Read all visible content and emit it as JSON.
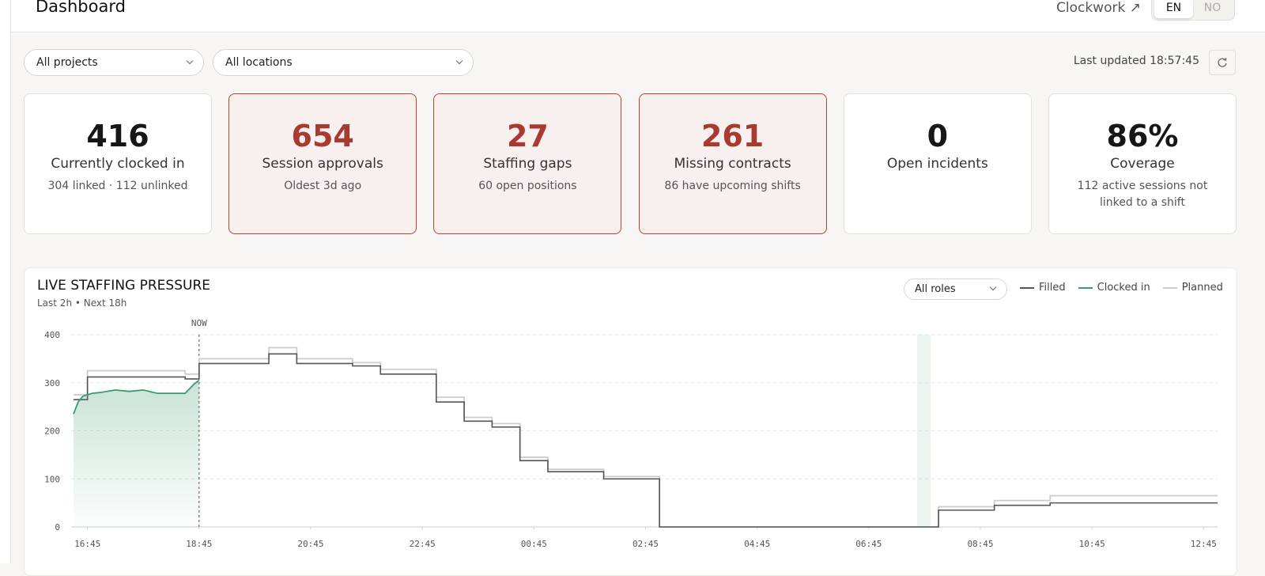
{
  "header": {
    "title": "Dashboard",
    "link": "Clockwork ↗",
    "languages": [
      "EN",
      "NO"
    ]
  },
  "filters": [
    "All projects",
    "All locations"
  ],
  "last_updated": "Last updated 18:57:45",
  "kpis": [
    {
      "value": "416",
      "label": "Currently clocked in",
      "detail": "304 linked · 112 unlinked",
      "alert": false
    },
    {
      "value": "654",
      "label": "Session approvals",
      "detail": "Oldest 3d ago",
      "alert": true
    },
    {
      "value": "27",
      "label": "Staffing gaps",
      "detail": "60 open positions",
      "alert": true
    },
    {
      "value": "261",
      "label": "Missing contracts",
      "detail": "86 have upcoming shifts",
      "alert": true
    },
    {
      "value": "0",
      "label": "Open incidents",
      "detail": "",
      "alert": false
    },
    {
      "value": "86%",
      "label": "Coverage",
      "detail": "112 active sessions not linked to a shift",
      "alert": false
    }
  ],
  "chart_data": {
    "type": "line",
    "title": "LIVE STAFFING PRESSURE",
    "subtitle": "Last 2h • Next 18h",
    "role_filter": "All roles",
    "now_label": "NOW",
    "now": "18:45",
    "xlim": [
      "16:30",
      "13:00"
    ],
    "xticks": [
      "16:45",
      "18:45",
      "20:45",
      "22:45",
      "00:45",
      "02:45",
      "04:45",
      "06:45",
      "08:45",
      "10:45",
      "12:45"
    ],
    "ylim": [
      0,
      400
    ],
    "yticks": [
      0,
      100,
      200,
      300,
      400
    ],
    "grid": true,
    "series": [
      {
        "name": "Filled",
        "color": "#555555",
        "step": true,
        "x": [
          "16:30",
          "16:45",
          "18:30",
          "18:45",
          "20:00",
          "20:30",
          "21:30",
          "22:00",
          "23:00",
          "23:30",
          "00:00",
          "00:30",
          "01:00",
          "02:00",
          "03:00",
          "08:00",
          "09:00",
          "10:00",
          "13:00"
        ],
        "values": [
          265,
          312,
          308,
          340,
          360,
          340,
          335,
          318,
          260,
          220,
          208,
          138,
          115,
          100,
          0,
          35,
          45,
          50,
          50
        ]
      },
      {
        "name": "Clocked in",
        "color": "#3d9970",
        "step": false,
        "area": true,
        "x": [
          "16:30",
          "16:35",
          "16:40",
          "16:50",
          "17:00",
          "17:15",
          "17:30",
          "17:45",
          "18:00",
          "18:30",
          "18:40",
          "18:45"
        ],
        "values": [
          235,
          260,
          272,
          278,
          280,
          285,
          282,
          285,
          278,
          278,
          298,
          305
        ]
      },
      {
        "name": "Planned",
        "color": "#cccccc",
        "step": true,
        "x": [
          "16:30",
          "16:45",
          "18:30",
          "18:45",
          "20:00",
          "20:30",
          "21:30",
          "22:00",
          "23:00",
          "23:30",
          "00:00",
          "00:30",
          "01:00",
          "02:00",
          "03:00",
          "08:00",
          "09:00",
          "10:00",
          "13:00"
        ],
        "values": [
          275,
          325,
          318,
          350,
          373,
          350,
          342,
          328,
          270,
          228,
          215,
          145,
          120,
          105,
          0,
          42,
          55,
          65,
          65
        ]
      }
    ]
  }
}
